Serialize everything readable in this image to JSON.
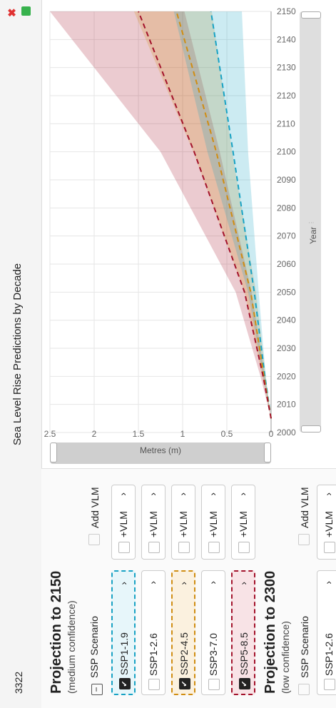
{
  "header": {
    "pin_code": "3322",
    "title": "Sea Level Rise Predictions by Decade"
  },
  "sections": [
    {
      "title": "Projection to 2150",
      "subtitle": "(medium confidence)",
      "col_ssp": "SSP Scenario",
      "col_vlm": "Add VLM",
      "rows": [
        {
          "label": "SSP1-1.9",
          "checked": true,
          "vlm": "+VLM",
          "color": "#17a2c4"
        },
        {
          "label": "SSP1-2.6",
          "checked": false,
          "vlm": "+VLM",
          "color": ""
        },
        {
          "label": "SSP2-4.5",
          "checked": true,
          "vlm": "+VLM",
          "color": "#d08d12"
        },
        {
          "label": "SSP3-7.0",
          "checked": false,
          "vlm": "+VLM",
          "color": ""
        },
        {
          "label": "SSP5-8.5",
          "checked": true,
          "vlm": "+VLM",
          "color": "#a3122b"
        }
      ]
    },
    {
      "title": "Projection to 2300",
      "subtitle": "(low confidence)",
      "col_ssp": "SSP Scenario",
      "col_vlm": "Add VLM",
      "rows": [
        {
          "label": "SSP1-2.6",
          "checked": false,
          "vlm": "+VLM",
          "color": ""
        }
      ]
    }
  ],
  "axis": {
    "y_title": "Metres (m)",
    "x_title": "Year"
  },
  "chart_data": {
    "type": "area",
    "title": "Sea Level Rise Predictions by Decade",
    "xlabel": "Year",
    "ylabel": "Metres (m)",
    "xlim": [
      2000,
      2150
    ],
    "ylim": [
      0,
      2.5
    ],
    "x_ticks": [
      2000,
      2010,
      2020,
      2030,
      2040,
      2050,
      2060,
      2070,
      2080,
      2090,
      2100,
      2110,
      2120,
      2130,
      2140,
      2150
    ],
    "y_ticks": [
      0,
      0.5,
      1,
      1.5,
      2,
      2.5
    ],
    "grid": true,
    "series": [
      {
        "name": "SSP1-1.9",
        "color": "#17a2c4",
        "x": [
          2005,
          2020,
          2050,
          2100,
          2150
        ],
        "median": [
          0.0,
          0.07,
          0.19,
          0.43,
          0.68
        ],
        "low": [
          0.0,
          0.06,
          0.14,
          0.26,
          0.33
        ],
        "high": [
          0.0,
          0.09,
          0.26,
          0.72,
          1.1
        ]
      },
      {
        "name": "SSP2-4.5",
        "color": "#d08d12",
        "x": [
          2005,
          2020,
          2050,
          2100,
          2150
        ],
        "median": [
          0.0,
          0.08,
          0.23,
          0.62,
          1.07
        ],
        "low": [
          0.0,
          0.06,
          0.17,
          0.44,
          0.67
        ],
        "high": [
          0.0,
          0.1,
          0.3,
          0.88,
          1.55
        ]
      },
      {
        "name": "SSP5-8.5",
        "color": "#a3122b",
        "x": [
          2005,
          2020,
          2050,
          2100,
          2150
        ],
        "median": [
          0.0,
          0.09,
          0.3,
          0.87,
          1.5
        ],
        "low": [
          0.0,
          0.07,
          0.22,
          0.58,
          0.98
        ],
        "high": [
          0.0,
          0.12,
          0.4,
          1.25,
          2.5
        ]
      }
    ]
  }
}
